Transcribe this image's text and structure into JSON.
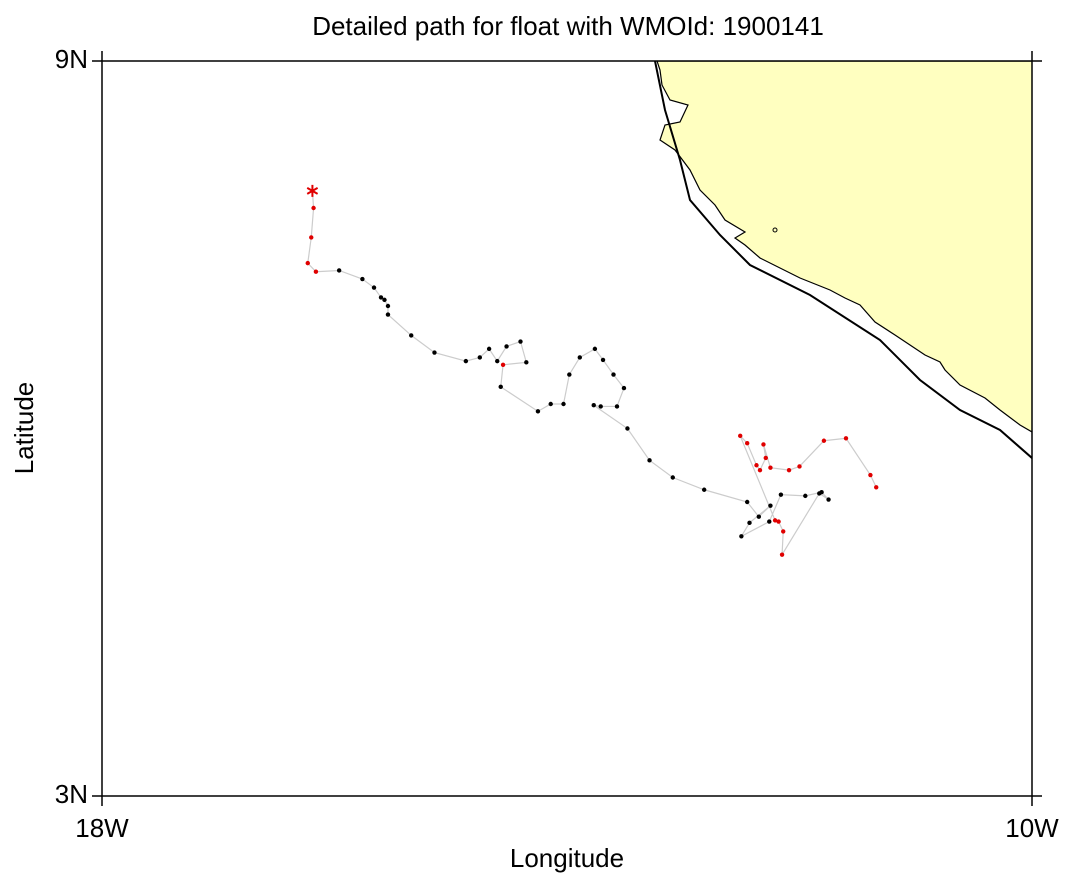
{
  "chart_data": {
    "type": "track",
    "title": "Detailed path for float with WMOId: 1900141",
    "x_label": "Longitude",
    "y_label": "Latitude",
    "xlim": [
      -18,
      -10
    ],
    "ylim": [
      3,
      9
    ],
    "xticks": [
      {
        "value": -18,
        "label": "18W"
      },
      {
        "value": -10,
        "label": "10W"
      }
    ],
    "yticks": [
      {
        "value": 3,
        "label": "3N"
      },
      {
        "value": 9,
        "label": "9N"
      }
    ],
    "x": [
      -16.19,
      -16.18,
      -16.2,
      -16.23,
      -16.16,
      -15.96,
      -15.76,
      -15.66,
      -15.6,
      -15.57,
      -15.54,
      -15.54,
      -15.34,
      -15.14,
      -14.87,
      -14.75,
      -14.67,
      -14.6,
      -14.52,
      -14.4,
      -14.35,
      -14.55,
      -14.57,
      -14.25,
      -14.14,
      -14.03,
      -13.98,
      -13.89,
      -13.76,
      -13.69,
      -13.6,
      -13.51,
      -13.57,
      -13.71,
      -13.77,
      -13.48,
      -13.29,
      -13.09,
      -12.82,
      -12.45,
      -12.35,
      -12.25,
      -12.43,
      -12.5,
      -12.26,
      -12.16,
      -11.95,
      -11.81,
      -11.75,
      -11.83,
      -12.15,
      -12.14,
      -12.18,
      -12.21,
      -12.51,
      -12.45,
      -12.37,
      -12.34,
      -12.29,
      -12.31,
      -12.25,
      -12.09,
      -12.0,
      -11.79,
      -11.6,
      -11.39,
      -11.34
    ],
    "y": [
      7.94,
      7.8,
      7.56,
      7.35,
      7.28,
      7.29,
      7.22,
      7.15,
      7.07,
      7.05,
      7.0,
      6.93,
      6.76,
      6.62,
      6.55,
      6.58,
      6.65,
      6.55,
      6.67,
      6.71,
      6.54,
      6.52,
      6.34,
      6.14,
      6.2,
      6.2,
      6.44,
      6.58,
      6.65,
      6.56,
      6.44,
      6.33,
      6.18,
      6.18,
      6.19,
      6.0,
      5.74,
      5.6,
      5.5,
      5.4,
      5.28,
      5.37,
      5.23,
      5.12,
      5.24,
      5.46,
      5.45,
      5.48,
      5.42,
      5.47,
      4.97,
      5.16,
      5.24,
      5.25,
      5.94,
      5.88,
      5.7,
      5.66,
      5.76,
      5.87,
      5.68,
      5.66,
      5.69,
      5.9,
      5.92,
      5.62,
      5.52
    ],
    "point_colors": [
      "#e00000",
      "#e00000",
      "#e00000",
      "#e00000",
      "#e00000",
      "#000000",
      "#000000",
      "#000000",
      "#000000",
      "#000000",
      "#000000",
      "#000000",
      "#000000",
      "#000000",
      "#000000",
      "#000000",
      "#000000",
      "#000000",
      "#000000",
      "#000000",
      "#000000",
      "#e00000",
      "#000000",
      "#000000",
      "#000000",
      "#000000",
      "#000000",
      "#000000",
      "#000000",
      "#000000",
      "#000000",
      "#000000",
      "#000000",
      "#000000",
      "#000000",
      "#000000",
      "#000000",
      "#000000",
      "#000000",
      "#000000",
      "#000000",
      "#000000",
      "#000000",
      "#000000",
      "#000000",
      "#000000",
      "#000000",
      "#000000",
      "#000000",
      "#000000",
      "#e00000",
      "#e00000",
      "#e00000",
      "#e00000",
      "#e00000",
      "#e00000",
      "#e00000",
      "#e00000",
      "#e00000",
      "#e00000",
      "#e00000",
      "#e00000",
      "#e00000",
      "#e00000",
      "#e00000",
      "#e00000",
      "#e00000"
    ],
    "line_color": "#cccccc",
    "first_marker": "star",
    "land_color": "#ffffc0"
  }
}
